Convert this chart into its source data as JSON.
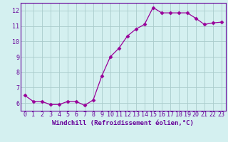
{
  "x": [
    0,
    1,
    2,
    3,
    4,
    5,
    6,
    7,
    8,
    9,
    10,
    11,
    12,
    13,
    14,
    15,
    16,
    17,
    18,
    19,
    20,
    21,
    22,
    23
  ],
  "y": [
    6.5,
    6.1,
    6.1,
    5.9,
    5.9,
    6.1,
    6.1,
    5.85,
    6.2,
    7.75,
    9.0,
    9.55,
    10.35,
    10.8,
    11.1,
    12.2,
    11.85,
    11.85,
    11.85,
    11.85,
    11.5,
    11.1,
    11.2,
    11.25
  ],
  "line_color": "#990099",
  "marker": "D",
  "marker_size": 2.5,
  "bg_color": "#d4f0f0",
  "grid_color": "#aacccc",
  "axis_color": "#660099",
  "tick_color": "#660099",
  "xlabel": "Windchill (Refroidissement éolien,°C)",
  "ylim": [
    5.5,
    12.5
  ],
  "xlim": [
    -0.5,
    23.5
  ],
  "yticks": [
    6,
    7,
    8,
    9,
    10,
    11,
    12
  ],
  "xticks": [
    0,
    1,
    2,
    3,
    4,
    5,
    6,
    7,
    8,
    9,
    10,
    11,
    12,
    13,
    14,
    15,
    16,
    17,
    18,
    19,
    20,
    21,
    22,
    23
  ],
  "font_size": 6.0,
  "label_font_size": 6.5
}
